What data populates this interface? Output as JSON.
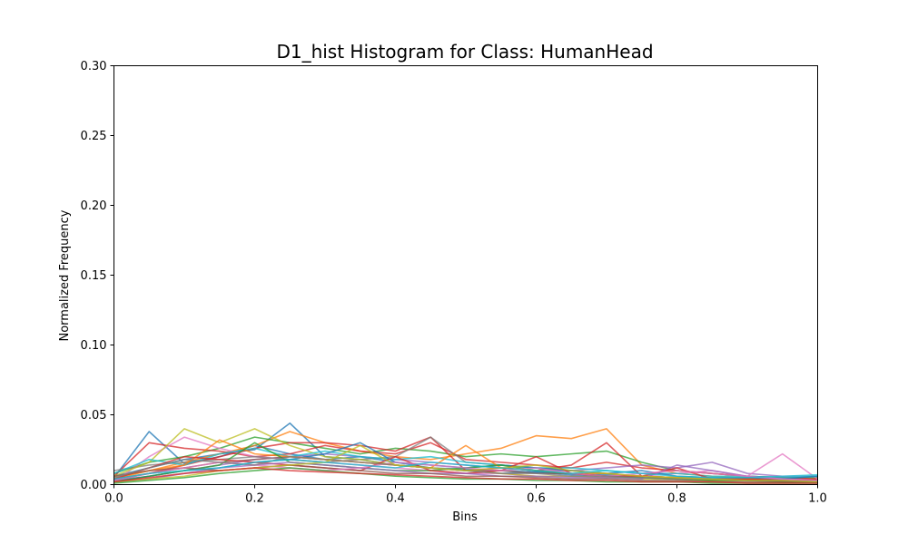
{
  "chart_data": {
    "type": "line",
    "title": "D1_hist Histogram for Class: HumanHead",
    "xlabel": "Bins",
    "ylabel": "Normalized Frequency",
    "xlim": [
      0,
      1
    ],
    "ylim": [
      0,
      0.3
    ],
    "x_ticks": [
      "0.0",
      "0.2",
      "0.4",
      "0.6",
      "0.8",
      "1.0"
    ],
    "y_ticks": [
      "0.00",
      "0.05",
      "0.10",
      "0.15",
      "0.20",
      "0.25",
      "0.30"
    ],
    "grid": false,
    "legend": "none",
    "x": [
      0,
      0.05,
      0.1,
      0.15,
      0.2,
      0.25,
      0.3,
      0.35,
      0.4,
      0.45,
      0.5,
      0.55,
      0.6,
      0.65,
      0.7,
      0.75,
      0.8,
      0.85,
      0.9,
      0.95,
      1.0
    ],
    "series": [
      {
        "color": "#1f77b4",
        "values": [
          0.005,
          0.038,
          0.015,
          0.02,
          0.028,
          0.022,
          0.018,
          0.02,
          0.016,
          0.012,
          0.01,
          0.008,
          0.009,
          0.007,
          0.006,
          0.005,
          0.004,
          0.004,
          0.003,
          0.003,
          0.004
        ]
      },
      {
        "color": "#1f77b4",
        "values": [
          0.006,
          0.012,
          0.018,
          0.022,
          0.025,
          0.044,
          0.02,
          0.018,
          0.014,
          0.012,
          0.011,
          0.01,
          0.009,
          0.008,
          0.007,
          0.006,
          0.005,
          0.004,
          0.004,
          0.003,
          0.003
        ]
      },
      {
        "color": "#ff7f0e",
        "values": [
          0.004,
          0.01,
          0.016,
          0.022,
          0.028,
          0.038,
          0.03,
          0.024,
          0.02,
          0.018,
          0.022,
          0.026,
          0.035,
          0.033,
          0.04,
          0.014,
          0.008,
          0.006,
          0.005,
          0.004,
          0.004
        ]
      },
      {
        "color": "#2ca02c",
        "values": [
          0.008,
          0.016,
          0.02,
          0.026,
          0.034,
          0.03,
          0.026,
          0.022,
          0.026,
          0.024,
          0.02,
          0.022,
          0.02,
          0.022,
          0.024,
          0.016,
          0.01,
          0.008,
          0.006,
          0.005,
          0.005
        ]
      },
      {
        "color": "#d62728",
        "values": [
          0.006,
          0.03,
          0.026,
          0.024,
          0.02,
          0.022,
          0.028,
          0.024,
          0.022,
          0.03,
          0.018,
          0.016,
          0.014,
          0.012,
          0.016,
          0.012,
          0.01,
          0.008,
          0.006,
          0.005,
          0.004
        ]
      },
      {
        "color": "#d62728",
        "values": [
          0.003,
          0.008,
          0.014,
          0.02,
          0.026,
          0.03,
          0.03,
          0.028,
          0.024,
          0.034,
          0.01,
          0.012,
          0.01,
          0.014,
          0.03,
          0.006,
          0.004,
          0.003,
          0.003,
          0.002,
          0.002
        ]
      },
      {
        "color": "#9467bd",
        "values": [
          0.002,
          0.006,
          0.01,
          0.014,
          0.018,
          0.02,
          0.022,
          0.02,
          0.018,
          0.016,
          0.014,
          0.012,
          0.01,
          0.01,
          0.012,
          0.014,
          0.012,
          0.016,
          0.008,
          0.006,
          0.006
        ]
      },
      {
        "color": "#8c564b",
        "values": [
          0.004,
          0.008,
          0.012,
          0.016,
          0.018,
          0.02,
          0.018,
          0.016,
          0.014,
          0.012,
          0.01,
          0.01,
          0.008,
          0.008,
          0.006,
          0.006,
          0.005,
          0.004,
          0.004,
          0.003,
          0.003
        ]
      },
      {
        "color": "#e377c2",
        "values": [
          0.002,
          0.02,
          0.034,
          0.026,
          0.02,
          0.018,
          0.016,
          0.014,
          0.012,
          0.01,
          0.008,
          0.008,
          0.006,
          0.006,
          0.005,
          0.006,
          0.008,
          0.01,
          0.006,
          0.022,
          0.004
        ]
      },
      {
        "color": "#7f7f7f",
        "values": [
          0.01,
          0.014,
          0.016,
          0.018,
          0.02,
          0.018,
          0.016,
          0.018,
          0.02,
          0.034,
          0.016,
          0.014,
          0.012,
          0.01,
          0.008,
          0.006,
          0.005,
          0.004,
          0.003,
          0.003,
          0.002
        ]
      },
      {
        "color": "#bcbd22",
        "values": [
          0.006,
          0.016,
          0.04,
          0.03,
          0.04,
          0.028,
          0.02,
          0.018,
          0.014,
          0.012,
          0.01,
          0.008,
          0.006,
          0.006,
          0.005,
          0.004,
          0.004,
          0.003,
          0.003,
          0.002,
          0.002
        ]
      },
      {
        "color": "#17becf",
        "values": [
          0.008,
          0.018,
          0.014,
          0.022,
          0.026,
          0.02,
          0.024,
          0.02,
          0.018,
          0.02,
          0.016,
          0.014,
          0.012,
          0.012,
          0.01,
          0.008,
          0.008,
          0.006,
          0.006,
          0.005,
          0.006
        ]
      },
      {
        "color": "#1f77b4",
        "values": [
          0.003,
          0.006,
          0.01,
          0.012,
          0.016,
          0.018,
          0.022,
          0.03,
          0.016,
          0.014,
          0.012,
          0.014,
          0.012,
          0.01,
          0.008,
          0.01,
          0.006,
          0.005,
          0.005,
          0.004,
          0.006
        ]
      },
      {
        "color": "#ff7f0e",
        "values": [
          0.005,
          0.01,
          0.014,
          0.032,
          0.022,
          0.02,
          0.018,
          0.016,
          0.014,
          0.012,
          0.028,
          0.012,
          0.01,
          0.008,
          0.008,
          0.006,
          0.005,
          0.004,
          0.004,
          0.003,
          0.003
        ]
      },
      {
        "color": "#2ca02c",
        "values": [
          0.002,
          0.006,
          0.01,
          0.014,
          0.03,
          0.016,
          0.014,
          0.012,
          0.01,
          0.01,
          0.012,
          0.014,
          0.01,
          0.008,
          0.006,
          0.005,
          0.004,
          0.003,
          0.003,
          0.002,
          0.002
        ]
      },
      {
        "color": "#d62728",
        "values": [
          0.004,
          0.012,
          0.02,
          0.018,
          0.016,
          0.014,
          0.012,
          0.01,
          0.02,
          0.01,
          0.008,
          0.01,
          0.02,
          0.008,
          0.006,
          0.006,
          0.012,
          0.004,
          0.004,
          0.003,
          0.003
        ]
      },
      {
        "color": "#9467bd",
        "values": [
          0.002,
          0.004,
          0.008,
          0.012,
          0.014,
          0.016,
          0.014,
          0.012,
          0.01,
          0.008,
          0.008,
          0.006,
          0.006,
          0.005,
          0.005,
          0.004,
          0.014,
          0.01,
          0.006,
          0.004,
          0.003
        ]
      },
      {
        "color": "#8c564b",
        "values": [
          0.006,
          0.01,
          0.012,
          0.01,
          0.012,
          0.014,
          0.012,
          0.01,
          0.008,
          0.008,
          0.006,
          0.006,
          0.005,
          0.004,
          0.004,
          0.003,
          0.003,
          0.002,
          0.002,
          0.002,
          0.002
        ]
      },
      {
        "color": "#e377c2",
        "values": [
          0.003,
          0.008,
          0.012,
          0.016,
          0.014,
          0.012,
          0.01,
          0.012,
          0.016,
          0.014,
          0.012,
          0.01,
          0.012,
          0.008,
          0.006,
          0.008,
          0.01,
          0.008,
          0.006,
          0.004,
          0.003
        ]
      },
      {
        "color": "#7f7f7f",
        "values": [
          0.005,
          0.012,
          0.018,
          0.016,
          0.014,
          0.02,
          0.018,
          0.016,
          0.014,
          0.012,
          0.01,
          0.008,
          0.008,
          0.006,
          0.006,
          0.005,
          0.004,
          0.004,
          0.003,
          0.003,
          0.002
        ]
      },
      {
        "color": "#bcbd22",
        "values": [
          0.002,
          0.004,
          0.006,
          0.01,
          0.012,
          0.014,
          0.016,
          0.028,
          0.014,
          0.012,
          0.01,
          0.012,
          0.014,
          0.01,
          0.008,
          0.006,
          0.005,
          0.004,
          0.003,
          0.003,
          0.002
        ]
      },
      {
        "color": "#17becf",
        "values": [
          0.004,
          0.008,
          0.01,
          0.012,
          0.016,
          0.018,
          0.016,
          0.014,
          0.012,
          0.016,
          0.014,
          0.012,
          0.01,
          0.008,
          0.01,
          0.008,
          0.006,
          0.005,
          0.005,
          0.006,
          0.007
        ]
      },
      {
        "color": "#2ca02c",
        "values": [
          0.001,
          0.003,
          0.005,
          0.008,
          0.01,
          0.012,
          0.01,
          0.008,
          0.006,
          0.005,
          0.004,
          0.004,
          0.003,
          0.003,
          0.002,
          0.002,
          0.002,
          0.001,
          0.001,
          0.001,
          0.001
        ]
      },
      {
        "color": "#d62728",
        "values": [
          0.002,
          0.005,
          0.008,
          0.01,
          0.012,
          0.01,
          0.009,
          0.008,
          0.007,
          0.006,
          0.005,
          0.004,
          0.004,
          0.003,
          0.003,
          0.002,
          0.002,
          0.002,
          0.001,
          0.001,
          0.001
        ]
      }
    ]
  }
}
